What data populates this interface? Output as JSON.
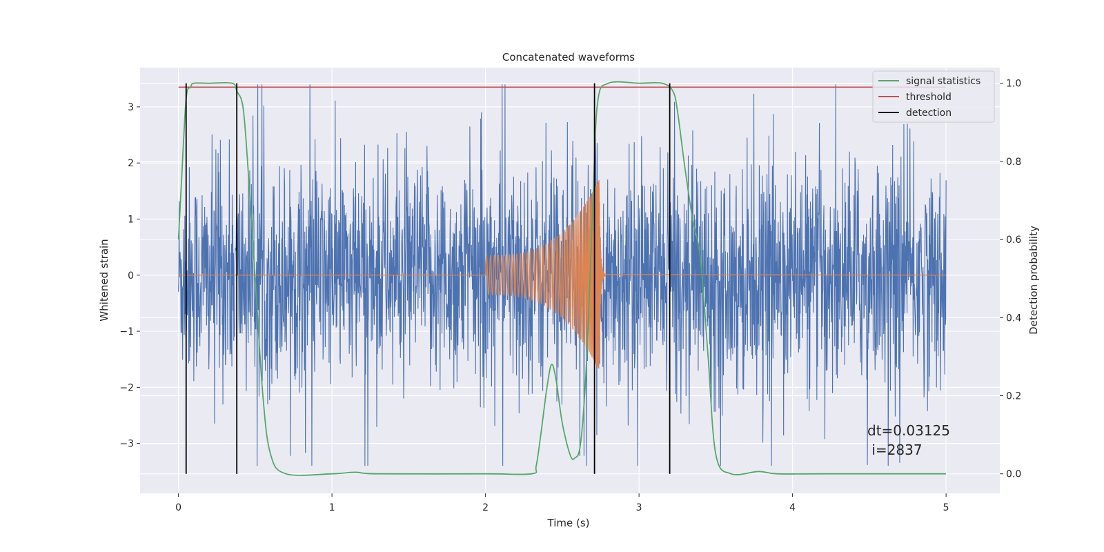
{
  "chart_data": {
    "type": "line",
    "title": "Concatenated waveforms",
    "xlabel": "Time (s)",
    "ylabel_left": "Whitened strain",
    "ylabel_right": "Detection probability",
    "xlim": [
      -0.25,
      5.35
    ],
    "ylim_left": [
      -3.89,
      3.7
    ],
    "ylim_right": [
      -0.05,
      1.04
    ],
    "xticks": [
      0,
      1,
      2,
      3,
      4,
      5
    ],
    "yticks_left": [
      -3,
      -2,
      -1,
      0,
      1,
      2,
      3
    ],
    "yticks_right": [
      0.0,
      0.2,
      0.4,
      0.6,
      0.8,
      1.0
    ],
    "grid": true,
    "legend_position": "top-right",
    "series": [
      {
        "name": "",
        "axis": "left",
        "color": "#4c72b0",
        "kind": "noise",
        "x_range": [
          0,
          5
        ],
        "envelope": 3.4
      },
      {
        "name": "",
        "axis": "left",
        "color": "#dd8452",
        "kind": "chirp",
        "x_range": [
          2.0,
          2.78
        ],
        "peak_time": 2.74,
        "amplitude_start": 0.35,
        "amplitude_peak": 1.7
      },
      {
        "name": "signal statistics",
        "axis": "right",
        "color": "#55a868",
        "x": [
          0,
          0.02,
          0.05,
          0.08,
          0.1,
          0.2,
          0.35,
          0.38,
          0.42,
          0.45,
          0.5,
          0.55,
          0.6,
          0.7,
          1.0,
          1.15,
          1.3,
          2.0,
          2.3,
          2.33,
          2.36,
          2.4,
          2.43,
          2.46,
          2.5,
          2.55,
          2.58,
          2.62,
          2.66,
          2.7,
          2.73,
          2.8,
          3.0,
          3.15,
          3.22,
          3.25,
          3.3,
          3.35,
          3.4,
          3.45,
          3.5,
          3.6,
          3.78,
          3.9,
          4.2,
          5.0
        ],
        "y": [
          0.6,
          0.75,
          0.96,
          0.99,
          1.0,
          1.0,
          1.0,
          0.98,
          0.94,
          0.8,
          0.5,
          0.2,
          0.05,
          0.0,
          0.0,
          0.004,
          0.0,
          0.0,
          0.0,
          0.02,
          0.1,
          0.22,
          0.28,
          0.24,
          0.13,
          0.05,
          0.04,
          0.08,
          0.3,
          0.7,
          0.95,
          1.0,
          1.0,
          1.0,
          0.98,
          0.93,
          0.78,
          0.65,
          0.55,
          0.3,
          0.05,
          0.0,
          0.006,
          0.0,
          0.0,
          0.0
        ]
      },
      {
        "name": "threshold",
        "axis": "right",
        "color": "#c44e52",
        "x": [
          0,
          5
        ],
        "y": [
          0.99,
          0.99
        ]
      },
      {
        "name": "detection",
        "axis": "right",
        "color": "#000000",
        "kind": "vlines",
        "x": [
          0.05,
          0.38,
          2.71,
          3.2
        ],
        "y_range": [
          0,
          1.0
        ]
      }
    ],
    "annotation": {
      "line1": "dt=0.03125",
      "line2": " i=2837",
      "x": 4.5,
      "y": -2.8
    }
  }
}
